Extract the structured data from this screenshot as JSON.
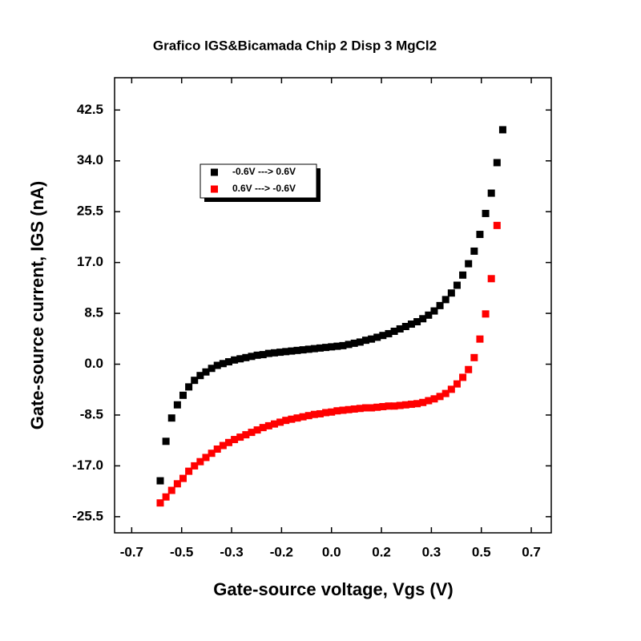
{
  "chart_data": {
    "type": "scatter",
    "title": "Grafico IGS&Bicamada Chip 2 Disp 3 MgCl2",
    "x_label": "Gate-source voltage, Vgs (V)",
    "y_label": "Gate-source current, IGS (nA)",
    "xlim": [
      -0.76,
      0.77
    ],
    "xticks": [
      {
        "value": -0.7,
        "label": "-0.7"
      },
      {
        "value": -0.525,
        "label": "-0.5"
      },
      {
        "value": -0.35,
        "label": "-0.3"
      },
      {
        "value": -0.175,
        "label": "-0.2"
      },
      {
        "value": 0,
        "label": "0.0"
      },
      {
        "value": 0.175,
        "label": "0.2"
      },
      {
        "value": 0.35,
        "label": "0.3"
      },
      {
        "value": 0.525,
        "label": "0.5"
      },
      {
        "value": 0.7,
        "label": "0.7"
      }
    ],
    "ylim": [
      -28.2,
      47.9
    ],
    "yticks": [
      {
        "value": 42.5,
        "label": "42.5"
      },
      {
        "value": 34,
        "label": "34.0"
      },
      {
        "value": 25.5,
        "label": "25.5"
      },
      {
        "value": 17,
        "label": "17.0"
      },
      {
        "value": 8.5,
        "label": "8.5"
      },
      {
        "value": 0,
        "label": "0.0"
      },
      -8.5,
      {
        "value": -17,
        "label": "-17.0"
      },
      -25.5
    ],
    "legend": "upper left",
    "series": [
      {
        "name": "-0.6V ---> 0.6V",
        "color": "#000000",
        "x": [
          -0.6,
          -0.58,
          -0.56,
          -0.54,
          -0.52,
          -0.5,
          -0.48,
          -0.46,
          -0.44,
          -0.42,
          -0.4,
          -0.38,
          -0.36,
          -0.34,
          -0.32,
          -0.3,
          -0.28,
          -0.26,
          -0.24,
          -0.22,
          -0.2,
          -0.18,
          -0.16,
          -0.14,
          -0.12,
          -0.1,
          -0.08,
          -0.06,
          -0.04,
          -0.02,
          0,
          0.02,
          0.04,
          0.06,
          0.08,
          0.1,
          0.12,
          0.14,
          0.16,
          0.18,
          0.2,
          0.22,
          0.24,
          0.26,
          0.28,
          0.3,
          0.32,
          0.34,
          0.36,
          0.38,
          0.4,
          0.42,
          0.44,
          0.46,
          0.48,
          0.5,
          0.52,
          0.54,
          0.56,
          0.58,
          0.6
        ],
        "values": [
          -19.5,
          -12.9,
          -9.0,
          -6.8,
          -5.2,
          -3.8,
          -2.7,
          -1.9,
          -1.3,
          -0.7,
          -0.2,
          0.1,
          0.4,
          0.7,
          0.9,
          1.1,
          1.3,
          1.5,
          1.6,
          1.8,
          1.9,
          2.0,
          2.1,
          2.2,
          2.3,
          2.4,
          2.5,
          2.6,
          2.7,
          2.8,
          2.9,
          3.0,
          3.1,
          3.3,
          3.5,
          3.7,
          4.0,
          4.2,
          4.5,
          4.8,
          5.1,
          5.5,
          5.9,
          6.3,
          6.7,
          7.1,
          7.6,
          8.2,
          8.9,
          9.8,
          10.8,
          11.9,
          13.2,
          14.9,
          16.8,
          18.9,
          21.7,
          25.2,
          28.6,
          33.7,
          39.2
        ]
      },
      {
        "name": "0.6V ---> -0.6V",
        "color": "#ff0000",
        "x": [
          -0.6,
          -0.58,
          -0.56,
          -0.54,
          -0.52,
          -0.5,
          -0.48,
          -0.46,
          -0.44,
          -0.42,
          -0.4,
          -0.38,
          -0.36,
          -0.34,
          -0.32,
          -0.3,
          -0.28,
          -0.26,
          -0.24,
          -0.22,
          -0.2,
          -0.18,
          -0.16,
          -0.14,
          -0.12,
          -0.1,
          -0.08,
          -0.06,
          -0.04,
          -0.02,
          0,
          0.02,
          0.04,
          0.06,
          0.08,
          0.1,
          0.12,
          0.14,
          0.16,
          0.18,
          0.2,
          0.22,
          0.24,
          0.26,
          0.28,
          0.3,
          0.32,
          0.34,
          0.36,
          0.38,
          0.4,
          0.42,
          0.44,
          0.46,
          0.48,
          0.5,
          0.52,
          0.54,
          0.56,
          0.58
        ],
        "values": [
          -23.2,
          -22.2,
          -21.1,
          -20.0,
          -19.1,
          -17.9,
          -17.0,
          -16.3,
          -15.6,
          -14.9,
          -14.2,
          -13.6,
          -13.1,
          -12.6,
          -12.2,
          -11.8,
          -11.4,
          -11.0,
          -10.6,
          -10.3,
          -10.0,
          -9.7,
          -9.4,
          -9.2,
          -9.0,
          -8.8,
          -8.6,
          -8.4,
          -8.3,
          -8.1,
          -8.0,
          -7.8,
          -7.7,
          -7.6,
          -7.5,
          -7.4,
          -7.3,
          -7.3,
          -7.2,
          -7.1,
          -7.0,
          -7.0,
          -6.9,
          -6.8,
          -6.7,
          -6.6,
          -6.4,
          -6.1,
          -5.8,
          -5.4,
          -4.9,
          -4.2,
          -3.3,
          -2.2,
          -0.9,
          1.1,
          4.2,
          8.4,
          14.3,
          23.2
        ]
      }
    ]
  }
}
